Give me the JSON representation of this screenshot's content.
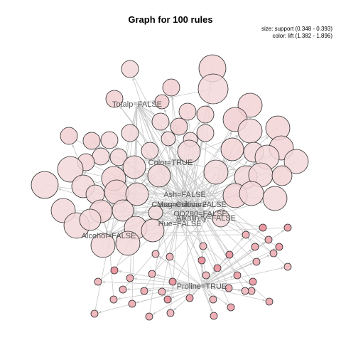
{
  "title": "Graph for 100 rules",
  "legend": {
    "size_text": "size: support (0.348 - 0.393)",
    "color_text": "color: lift (1.382 - 1.896)"
  },
  "colors": {
    "rule_fill_low": "#f3e0e0",
    "rule_fill_high": "#e98b97",
    "node_stroke": "#2b2b2b",
    "edge": "#c8c8c8",
    "label": "#555555"
  },
  "items": [
    {
      "id": "totalp",
      "label": "Totalp=FALSE"
    },
    {
      "id": "color",
      "label": "Color=TRUE"
    },
    {
      "id": "ash",
      "label": "Ash=FALSE"
    },
    {
      "id": "class",
      "label": "Class=Cultivar2"
    },
    {
      "id": "magnesium",
      "label": "Magnesium=FALSE"
    },
    {
      "id": "od280",
      "label": "OD280=FALSE"
    },
    {
      "id": "alkalinity",
      "label": "Alkalinity=FALSE"
    },
    {
      "id": "hue",
      "label": "Hue=FALSE"
    },
    {
      "id": "alcohol",
      "label": "Alcohol=FALSE"
    },
    {
      "id": "proline",
      "label": "Proline=TRUE"
    }
  ]
}
